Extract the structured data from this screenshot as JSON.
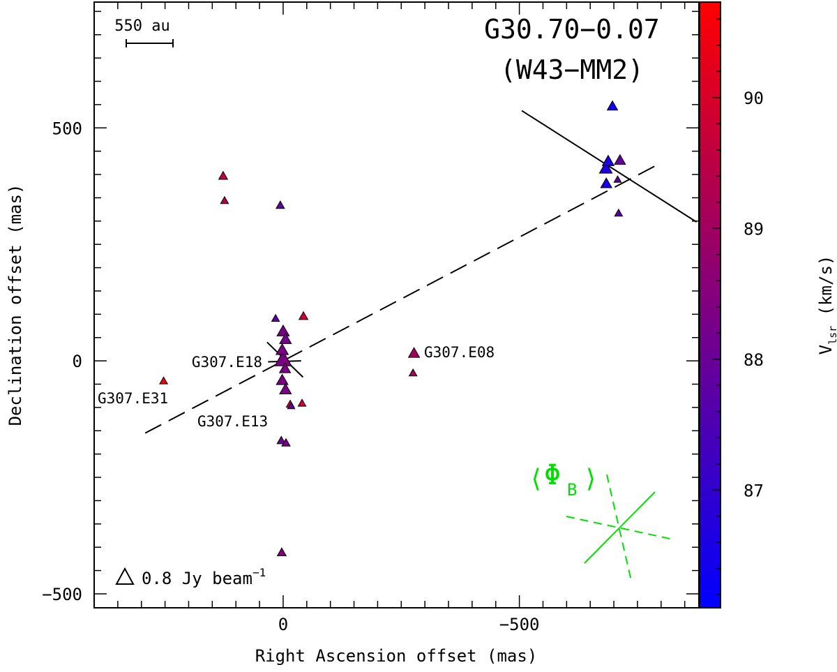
{
  "chart_data": {
    "type": "scatter",
    "title": "G30.70−0.07",
    "subtitle": "(W43−MM2)",
    "xlabel": "Right Ascension offset (mas)",
    "ylabel": "Declination offset (mas)",
    "xlim": [
      400,
      -880
    ],
    "ylim": [
      -530,
      770
    ],
    "x_ticks": [
      0,
      -500
    ],
    "x_tick_labels": [
      "0",
      "−500"
    ],
    "y_ticks": [
      500,
      0,
      -500
    ],
    "y_tick_labels": [
      "500",
      "0",
      "−500"
    ],
    "colorbar": {
      "label_main": "V",
      "label_sub": "lsr",
      "label_unit": " (km/s)",
      "range": [
        86.1,
        90.73
      ],
      "ticks": [
        87,
        88,
        89,
        90
      ],
      "tick_labels": [
        "87",
        "88",
        "89",
        "90"
      ],
      "low_color": "#0000ff",
      "high_color": "#ff0000"
    },
    "scale_bar": {
      "label": "550 au"
    },
    "legend": {
      "label": "0.8 Jy beam",
      "superscript": "−1"
    },
    "beam_label": {
      "phi": "Φ",
      "sub": "B"
    },
    "beam_color": "#00e000",
    "annotations": [
      {
        "text": "G307.E18",
        "x": 45,
        "y": 0
      },
      {
        "text": "G307.E31",
        "x": 238,
        "y": -85
      },
      {
        "text": "G307.E13",
        "x": 62,
        "y": -133
      },
      {
        "text": "G307.E08",
        "x": -303,
        "y": 18
      }
    ],
    "series": [
      {
        "name": "masers",
        "points": [
          {
            "x": 127,
            "y": 398,
            "v": 89.6,
            "flux": 0.3
          },
          {
            "x": 124,
            "y": 345,
            "v": 89.4,
            "flux": 0.2
          },
          {
            "x": 6,
            "y": 335,
            "v": 87.9,
            "flux": 0.25
          },
          {
            "x": 16,
            "y": 92,
            "v": 87.8,
            "flux": 0.2
          },
          {
            "x": -43,
            "y": 97,
            "v": 89.8,
            "flux": 0.3
          },
          {
            "x": 0,
            "y": 65,
            "v": 88.3,
            "flux": 0.8
          },
          {
            "x": -5,
            "y": 48,
            "v": 88.2,
            "flux": 0.7
          },
          {
            "x": 2,
            "y": 25,
            "v": 88.3,
            "flux": 0.8
          },
          {
            "x": 0,
            "y": 5,
            "v": 88.35,
            "flux": 1.8
          },
          {
            "x": -4,
            "y": -15,
            "v": 88.3,
            "flux": 0.6
          },
          {
            "x": 2,
            "y": -40,
            "v": 88.3,
            "flux": 0.7
          },
          {
            "x": -5,
            "y": -60,
            "v": 88.3,
            "flux": 0.7
          },
          {
            "x": -15,
            "y": -92,
            "v": 90.2,
            "flux": 0.2
          },
          {
            "x": -17,
            "y": -96,
            "v": 87.9,
            "flux": 0.15
          },
          {
            "x": -40,
            "y": -90,
            "v": 89.9,
            "flux": 0.2
          },
          {
            "x": 253,
            "y": -42,
            "v": 90.5,
            "flux": 0.2
          },
          {
            "x": 4,
            "y": -170,
            "v": 88.1,
            "flux": 0.25
          },
          {
            "x": -6,
            "y": -175,
            "v": 88.3,
            "flux": 0.25
          },
          {
            "x": 3,
            "y": -410,
            "v": 88.5,
            "flux": 0.3
          },
          {
            "x": -277,
            "y": 18,
            "v": 89.1,
            "flux": 0.6
          },
          {
            "x": -275,
            "y": -25,
            "v": 89.0,
            "flux": 0.2
          },
          {
            "x": -697,
            "y": 548,
            "v": 86.4,
            "flux": 0.5
          },
          {
            "x": -688,
            "y": 430,
            "v": 86.6,
            "flux": 0.7
          },
          {
            "x": -683,
            "y": 415,
            "v": 86.7,
            "flux": 0.9
          },
          {
            "x": -713,
            "y": 432,
            "v": 87.9,
            "flux": 0.6
          },
          {
            "x": -708,
            "y": 390,
            "v": 87.8,
            "flux": 0.15
          },
          {
            "x": -684,
            "y": 382,
            "v": 86.5,
            "flux": 0.6
          },
          {
            "x": -710,
            "y": 318,
            "v": 87.7,
            "flux": 0.2
          }
        ]
      }
    ],
    "lines": [
      {
        "name": "dashed-fit-line",
        "style": "dashed",
        "x": [
          292,
          -800
        ],
        "y": [
          -155,
          425
        ]
      },
      {
        "name": "solid-axis-line-north",
        "style": "solid",
        "x": [
          -505,
          -875
        ],
        "y": [
          537,
          298
        ]
      },
      {
        "name": "solid-axis-line-center",
        "style": "solid",
        "x": [
          34,
          -42
        ],
        "y": [
          40,
          -35
        ]
      },
      {
        "name": "center-minor-line",
        "style": "solid",
        "x": [
          32,
          -38
        ],
        "y": [
          -2,
          0
        ]
      }
    ]
  }
}
